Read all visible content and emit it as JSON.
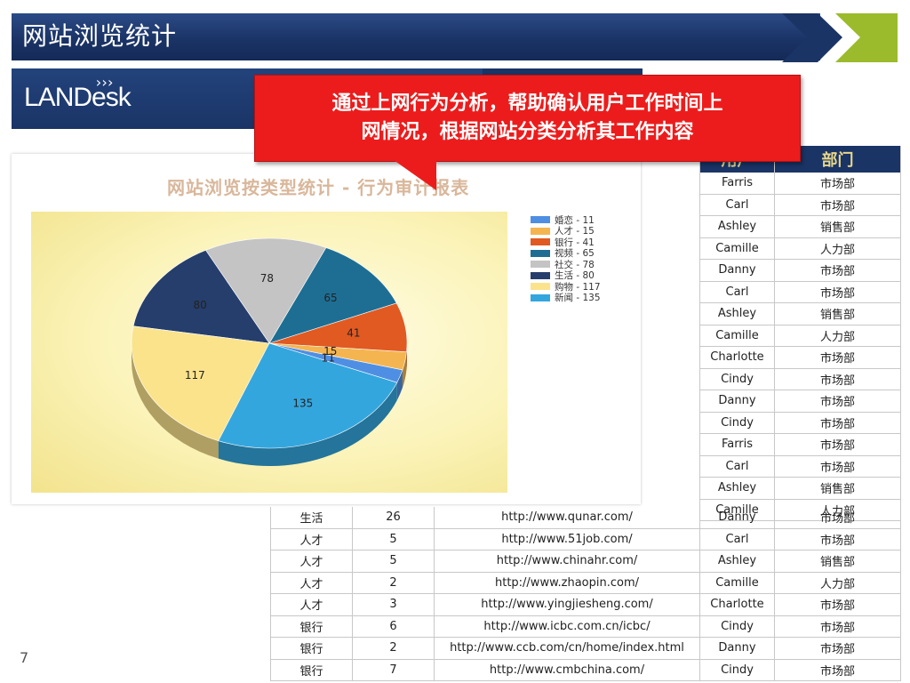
{
  "slide": {
    "title": "网站浏览统计",
    "logo": "LANDesk",
    "page_number": "7"
  },
  "callout": {
    "line1": "通过上网行为分析，帮助确认用户工作时间上",
    "line2": "网情况，根据网站分类分析其工作内容"
  },
  "chart_data": {
    "type": "pie",
    "title": "网站浏览按类型统计 - 行为审计报表",
    "slices": [
      {
        "name": "婚恋",
        "value": 11,
        "color": "#4f8fe3"
      },
      {
        "name": "人才",
        "value": 15,
        "color": "#f4b550"
      },
      {
        "name": "银行",
        "value": 41,
        "color": "#e05a22"
      },
      {
        "name": "视频",
        "value": 65,
        "color": "#1e6e94"
      },
      {
        "name": "社交",
        "value": 78,
        "color": "#c4c4c4"
      },
      {
        "name": "生活",
        "value": 80,
        "color": "#253e6c"
      },
      {
        "name": "购物",
        "value": 117,
        "color": "#fbe38c"
      },
      {
        "name": "新闻",
        "value": 135,
        "color": "#34a6de"
      }
    ],
    "legend": [
      {
        "label": "婚恋 - 11",
        "color": "#4f8fe3"
      },
      {
        "label": "人才 - 15",
        "color": "#f4b550"
      },
      {
        "label": "银行 - 41",
        "color": "#e05a22"
      },
      {
        "label": "视频 - 65",
        "color": "#1e6e94"
      },
      {
        "label": "社交 - 78",
        "color": "#c4c4c4"
      },
      {
        "label": "生活 - 80",
        "color": "#253e6c"
      },
      {
        "label": "购物 - 117",
        "color": "#fbe38c"
      },
      {
        "label": "新闻 - 135",
        "color": "#34a6de"
      }
    ],
    "legend_position": "right"
  },
  "right_table": {
    "headers": [
      "用户",
      "部门"
    ],
    "rows": [
      [
        "Farris",
        "市场部"
      ],
      [
        "Carl",
        "市场部"
      ],
      [
        "Ashley",
        "销售部"
      ],
      [
        "Camille",
        "人力部"
      ],
      [
        "Danny",
        "市场部"
      ],
      [
        "Carl",
        "市场部"
      ],
      [
        "Ashley",
        "销售部"
      ],
      [
        "Camille",
        "人力部"
      ],
      [
        "Charlotte",
        "市场部"
      ],
      [
        "Cindy",
        "市场部"
      ],
      [
        "Danny",
        "市场部"
      ],
      [
        "Cindy",
        "市场部"
      ],
      [
        "Farris",
        "市场部"
      ],
      [
        "Carl",
        "市场部"
      ],
      [
        "Ashley",
        "销售部"
      ],
      [
        "Camille",
        "人力部"
      ]
    ]
  },
  "bottom_table": {
    "rows": [
      [
        "生活",
        "26",
        "http://www.qunar.com/",
        "Danny",
        "市场部"
      ],
      [
        "人才",
        "5",
        "http://www.51job.com/",
        "Carl",
        "市场部"
      ],
      [
        "人才",
        "5",
        "http://www.chinahr.com/",
        "Ashley",
        "销售部"
      ],
      [
        "人才",
        "2",
        "http://www.zhaopin.com/",
        "Camille",
        "人力部"
      ],
      [
        "人才",
        "3",
        "http://www.yingjiesheng.com/",
        "Charlotte",
        "市场部"
      ],
      [
        "银行",
        "6",
        "http://www.icbc.com.cn/icbc/",
        "Cindy",
        "市场部"
      ],
      [
        "银行",
        "2",
        "http://www.ccb.com/cn/home/index.html",
        "Danny",
        "市场部"
      ],
      [
        "银行",
        "7",
        "http://www.cmbchina.com/",
        "Cindy",
        "市场部"
      ]
    ]
  }
}
